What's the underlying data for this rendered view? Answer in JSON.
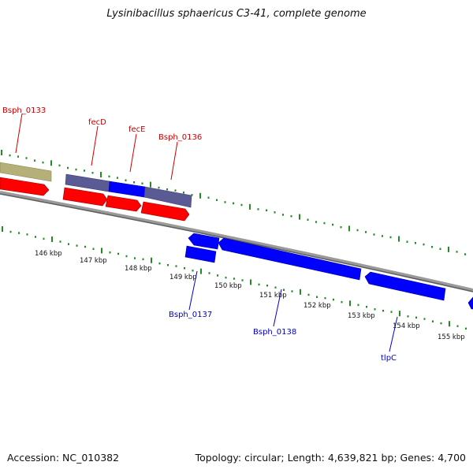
{
  "title": "Lysinibacillus sphaericus C3-41, complete genome",
  "footer": {
    "accession": "Accession: NC_010382",
    "summary": "Topology: circular; Length: 4,639,821 bp; Genes: 4,700"
  },
  "colors": {
    "forward_gene": "#ff0000",
    "reverse_gene": "#0000ff",
    "feature_purple": "#55558f",
    "feature_olive": "#b5b07a",
    "gc_ticks": "#228b22",
    "backbone": "#7a7a7a",
    "label_red": "#cc0000",
    "label_blue": "#0000cc"
  },
  "ticks": [
    "146 kbp",
    "147 kbp",
    "148 kbp",
    "149 kbp",
    "150 kbp",
    "151 kbp",
    "152 kbp",
    "153 kbp",
    "154 kbp",
    "155 kbp"
  ],
  "forward_labels": [
    "Bsph_0133",
    "fecD",
    "fecE",
    "Bsph_0136"
  ],
  "reverse_labels": [
    "Bsph_0137",
    "Bsph_0138",
    "tlpC"
  ]
}
